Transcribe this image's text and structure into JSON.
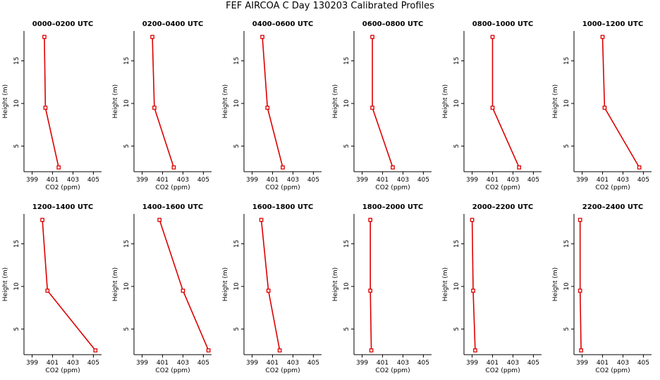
{
  "title": "FEF AIRCOA C  Day 130203  Calibrated Profiles",
  "colors": {
    "series": "#dd0000",
    "axis": "#000000"
  },
  "chart_data": {
    "type": "line",
    "xlabel": "CO2 (ppm)",
    "ylabel": "Height (m)",
    "xlim": [
      398.2,
      405.8
    ],
    "ylim": [
      2.0,
      18.5
    ],
    "xticks": [
      399,
      401,
      403,
      405
    ],
    "yticks": [
      5,
      10,
      15
    ],
    "heights": [
      2.5,
      9.5,
      17.8
    ],
    "panels": [
      {
        "title": "0000–0200 UTC",
        "values": [
          401.6,
          400.3,
          400.2
        ]
      },
      {
        "title": "0200–0400 UTC",
        "values": [
          402.1,
          400.2,
          400.0
        ]
      },
      {
        "title": "0400–0600 UTC",
        "values": [
          402.0,
          400.5,
          400.0
        ]
      },
      {
        "title": "0600–0800 UTC",
        "values": [
          402.0,
          400.0,
          400.0
        ]
      },
      {
        "title": "0800–1000 UTC",
        "values": [
          403.6,
          401.0,
          401.0
        ]
      },
      {
        "title": "1000–1200 UTC",
        "values": [
          404.6,
          401.2,
          401.0
        ]
      },
      {
        "title": "1200–1400 UTC",
        "values": [
          405.2,
          400.5,
          400.0
        ]
      },
      {
        "title": "1400–1600 UTC",
        "values": [
          405.5,
          403.0,
          400.7
        ]
      },
      {
        "title": "1600–1800 UTC",
        "values": [
          401.7,
          400.6,
          399.9
        ]
      },
      {
        "title": "1800–2000 UTC",
        "values": [
          399.9,
          399.8,
          399.8
        ]
      },
      {
        "title": "2000–2200 UTC",
        "values": [
          399.3,
          399.1,
          399.0
        ]
      },
      {
        "title": "2200–2400 UTC",
        "values": [
          398.9,
          398.8,
          398.8
        ]
      }
    ]
  }
}
